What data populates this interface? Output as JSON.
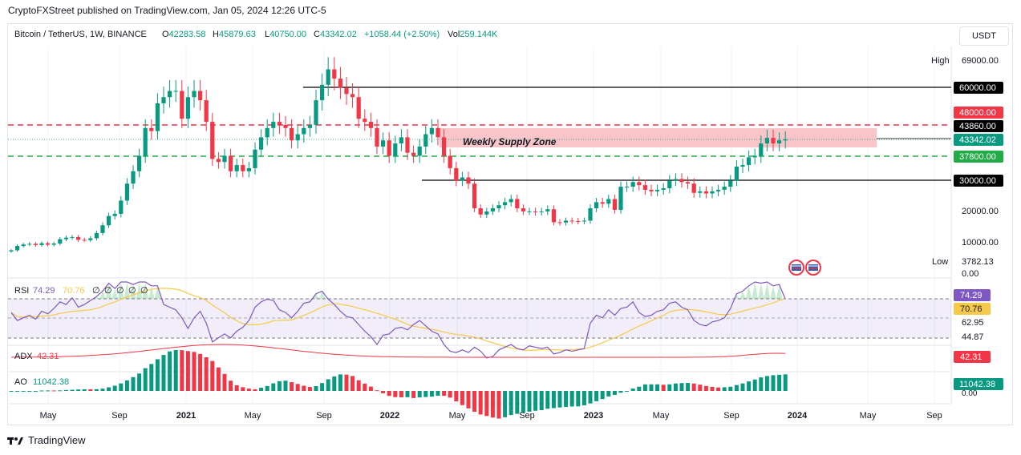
{
  "publisher_line": "CryptoFXStreet published on TradingView.com, Jan 05, 2024 12:26 UTC-5",
  "currency_button": "USDT",
  "footer_brand": "TradingView",
  "header": {
    "symbol": "Bitcoin / TetherUS, 1W, BINANCE",
    "o_label": "O",
    "o_value": "42283.58",
    "h_label": "H",
    "h_value": "45879.63",
    "l_label": "L",
    "l_value": "40750.00",
    "c_label": "C",
    "c_value": "43342.02",
    "change": "+1058.44 (+2.50%)",
    "vol_label": "Vol",
    "vol_value": "259.144K"
  },
  "colors": {
    "up": "#089981",
    "down": "#f23645",
    "rsi": "#7e57c2",
    "rsi_ma": "#f7c948",
    "adx": "#f23645",
    "support": "#22ab46",
    "resistance": "#f23645",
    "supply_zone": "#f7b1b5"
  },
  "chart_data": [
    {
      "type": "candlestick",
      "title": "Bitcoin / TetherUS, 1W, BINANCE",
      "x_ticks": [
        "May",
        "Sep",
        "2021",
        "May",
        "Sep",
        "2022",
        "May",
        "Sep",
        "2023",
        "May",
        "Sep",
        "2024",
        "May",
        "Sep"
      ],
      "y_ticks": [
        "0.00",
        "10000.00",
        "20000.00",
        "30000.00",
        "60000.00",
        "69000.00"
      ],
      "ylim": [
        0,
        69000
      ],
      "high_label": "High",
      "high_value": 69000,
      "low_label": "Low",
      "low_value": 3782.13,
      "last_price": "43342.02",
      "levels": [
        {
          "label": "60000.00",
          "value": 60000,
          "style": "solid",
          "color": "#000000"
        },
        {
          "label": "48000.00",
          "value": 48000,
          "style": "solid",
          "color": "#f23645"
        },
        {
          "label": "43860.00",
          "value": 43860,
          "style": "dashed",
          "color": "#f23645"
        },
        {
          "label": "37800.00",
          "value": 37800,
          "style": "dashed",
          "color": "#22ab46"
        },
        {
          "label": "30000.00",
          "value": 30000,
          "style": "solid",
          "color": "#000000"
        }
      ],
      "annotation": "Weekly Supply Zone",
      "supply_zone": [
        37800,
        43860
      ],
      "weekly_closes": [
        7400,
        8800,
        9300,
        9500,
        9100,
        9700,
        9200,
        9600,
        11000,
        11500,
        11700,
        10800,
        10700,
        11300,
        13000,
        15500,
        18500,
        19200,
        23500,
        29000,
        33000,
        38000,
        47000,
        46000,
        55000,
        57000,
        59000,
        59000,
        50000,
        57000,
        59000,
        56000,
        49000,
        37000,
        36000,
        38000,
        33000,
        35000,
        33000,
        34000,
        40000,
        44000,
        47000,
        49000,
        48000,
        47000,
        43000,
        45000,
        47000,
        48000,
        56000,
        61000,
        66000,
        63000,
        60000,
        58000,
        57000,
        50000,
        49000,
        47000,
        41000,
        43000,
        38000,
        42000,
        44000,
        39000,
        38000,
        41000,
        45000,
        47000,
        44000,
        38000,
        34000,
        30000,
        31000,
        29000,
        21000,
        19000,
        20000,
        21000,
        22000,
        23000,
        24000,
        21000,
        20000,
        20000,
        19800,
        20000,
        20700,
        16500,
        16400,
        17000,
        16900,
        16800,
        17000,
        21000,
        23000,
        22500,
        24000,
        20500,
        28000,
        28000,
        29500,
        28500,
        27000,
        26500,
        27000,
        27500,
        30000,
        30500,
        29500,
        29000,
        26000,
        26500,
        25800,
        26500,
        27000,
        28000,
        30000,
        34500,
        35000,
        37500,
        38000,
        42000,
        43800,
        42000,
        43000,
        43342
      ]
    },
    {
      "type": "line",
      "title": "RSI",
      "series": [
        {
          "name": "RSI",
          "last": "74.29"
        },
        {
          "name": "RSI MA",
          "last": "70.76"
        }
      ],
      "legend_values": [
        "74.29",
        "70.76",
        "∅",
        "∅",
        "∅",
        "∅",
        "∅"
      ],
      "y_ticks": [
        "62.95",
        "44.87"
      ],
      "values": [
        64,
        58,
        60,
        62,
        59,
        65,
        63,
        67,
        72,
        70,
        75,
        68,
        70,
        73,
        76,
        80,
        86,
        82,
        88,
        90,
        85,
        88,
        94,
        84,
        84,
        70,
        68,
        66,
        60,
        52,
        60,
        65,
        56,
        42,
        45,
        48,
        45,
        50,
        53,
        58,
        68,
        72,
        74,
        73,
        66,
        64,
        60,
        65,
        71,
        72,
        78,
        80,
        74,
        70,
        65,
        61,
        60,
        55,
        50,
        46,
        40,
        47,
        48,
        52,
        53,
        51,
        55,
        58,
        54,
        50,
        48,
        40,
        35,
        34,
        36,
        34,
        38,
        35,
        30,
        31,
        36,
        38,
        40,
        37,
        36,
        39,
        38,
        37,
        38,
        33,
        34,
        36,
        35,
        36,
        37,
        56,
        62,
        60,
        66,
        62,
        67,
        68,
        72,
        64,
        61,
        62,
        65,
        66,
        71,
        72,
        68,
        66,
        58,
        55,
        54,
        57,
        58,
        60,
        67,
        78,
        80,
        84,
        87,
        86,
        88,
        84,
        85,
        74
      ]
    },
    {
      "type": "line",
      "title": "ADX",
      "series": [
        {
          "name": "ADX",
          "last": "42.31"
        }
      ]
    },
    {
      "type": "bar",
      "title": "AO",
      "series": [
        {
          "name": "AO",
          "last": "11042.38"
        }
      ],
      "y_ticks": [
        "0.00"
      ]
    }
  ]
}
